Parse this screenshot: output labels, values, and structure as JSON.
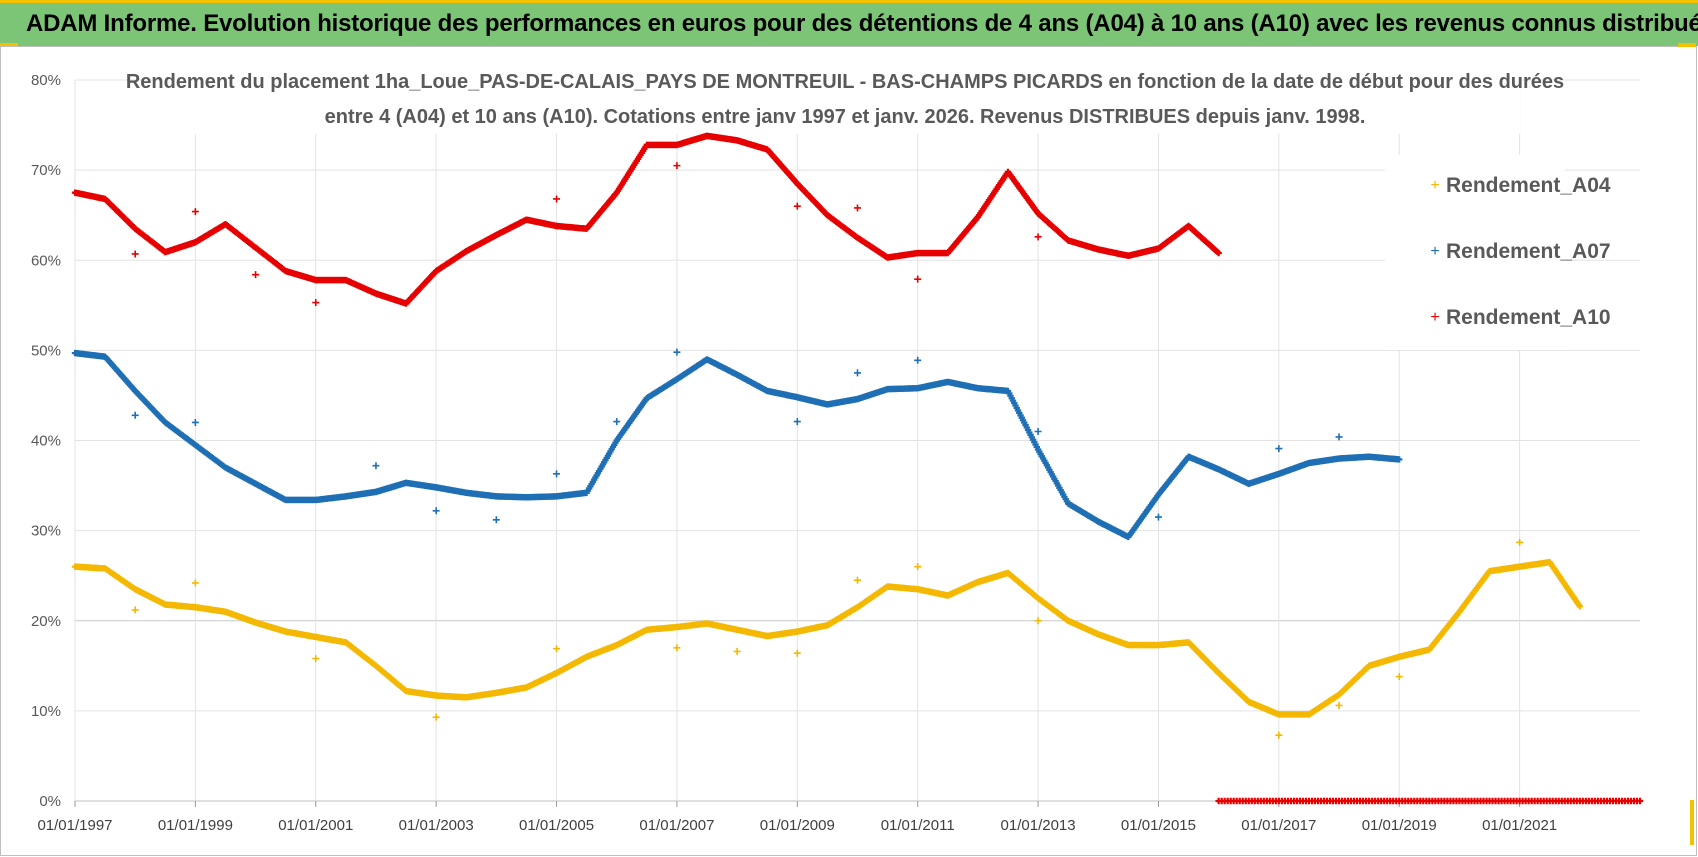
{
  "header": {
    "title": "ADAM Informe. Evolution historique des performances en euros pour des détentions de 4 ans (A04) à 10 ans (A10) avec les revenus connus distribués"
  },
  "chart_data": {
    "type": "scatter",
    "title_lines": [
      "Rendement du placement 1ha_Loue_PAS-DE-CALAIS_PAYS DE MONTREUIL - BAS-CHAMPS PICARDS en fonction de la date de début pour des durées",
      "entre 4 (A04) et 10 ans (A10). Cotations entre janv 1997 et janv. 2026. Revenus DISTRIBUES depuis janv. 1998."
    ],
    "xlabel": "",
    "ylabel": "",
    "xlim": [
      1997.0,
      2023.0
    ],
    "ylim": [
      0,
      80
    ],
    "x_tick_labels": [
      "01/01/1997",
      "01/01/1999",
      "01/01/2001",
      "01/01/2003",
      "01/01/2005",
      "01/01/2007",
      "01/01/2009",
      "01/01/2011",
      "01/01/2013",
      "01/01/2015",
      "01/01/2017",
      "01/01/2019",
      "01/01/2021"
    ],
    "x_tick_values": [
      1997,
      1999,
      2001,
      2003,
      2005,
      2007,
      2009,
      2011,
      2013,
      2015,
      2017,
      2019,
      2021
    ],
    "y_tick_labels": [
      "0%",
      "10%",
      "20%",
      "30%",
      "40%",
      "50%",
      "60%",
      "70%",
      "80%"
    ],
    "y_tick_values": [
      0,
      10,
      20,
      30,
      40,
      50,
      60,
      70,
      80
    ],
    "legend_position": "right",
    "series": [
      {
        "name": "Rendement_A04",
        "color": "#f5b800",
        "points": [
          [
            1997.0,
            26
          ],
          [
            1997.5,
            25.8
          ],
          [
            1998.0,
            23.5
          ],
          [
            1998.5,
            21.8
          ],
          [
            1999.0,
            21.5
          ],
          [
            1999.5,
            21
          ],
          [
            2000.0,
            19.8
          ],
          [
            2000.5,
            18.8
          ],
          [
            2001.0,
            18.2
          ],
          [
            2001.5,
            17.6
          ],
          [
            2002.0,
            15
          ],
          [
            2002.5,
            12.2
          ],
          [
            2003.0,
            11.7
          ],
          [
            2003.5,
            11.5
          ],
          [
            2004.0,
            12
          ],
          [
            2004.5,
            12.6
          ],
          [
            2005.0,
            14.2
          ],
          [
            2005.5,
            16
          ],
          [
            2006.0,
            17.3
          ],
          [
            2006.5,
            19
          ],
          [
            2007.0,
            19.3
          ],
          [
            2007.5,
            19.7
          ],
          [
            2008.0,
            19
          ],
          [
            2008.5,
            18.3
          ],
          [
            2009.0,
            18.8
          ],
          [
            2009.5,
            19.5
          ],
          [
            2010.0,
            21.5
          ],
          [
            2010.5,
            23.8
          ],
          [
            2011.0,
            23.5
          ],
          [
            2011.5,
            22.8
          ],
          [
            2012.0,
            24.3
          ],
          [
            2012.5,
            25.3
          ],
          [
            2013.0,
            22.5
          ],
          [
            2013.5,
            20
          ],
          [
            2014.0,
            18.5
          ],
          [
            2014.5,
            17.3
          ],
          [
            2015.0,
            17.3
          ],
          [
            2015.5,
            17.6
          ],
          [
            2016.0,
            14.2
          ],
          [
            2016.5,
            11
          ],
          [
            2017.0,
            9.6
          ],
          [
            2017.5,
            9.6
          ],
          [
            2018.0,
            11.8
          ],
          [
            2018.5,
            15
          ],
          [
            2019.0,
            16
          ],
          [
            2019.5,
            16.8
          ],
          [
            2020.0,
            21
          ],
          [
            2020.5,
            25.5
          ],
          [
            2021.0,
            26
          ],
          [
            2021.5,
            26.5
          ],
          [
            2022.0,
            21.6
          ]
        ],
        "outliers": [
          [
            1998.0,
            21.2
          ],
          [
            1999.0,
            24.2
          ],
          [
            2001.0,
            15.8
          ],
          [
            2003.0,
            9.3
          ],
          [
            2005.0,
            16.9
          ],
          [
            2007.0,
            17
          ],
          [
            2008.0,
            16.6
          ],
          [
            2009.0,
            16.4
          ],
          [
            2010.0,
            24.5
          ],
          [
            2011.0,
            26
          ],
          [
            2013.0,
            20
          ],
          [
            2017.0,
            7.3
          ],
          [
            2018.0,
            10.6
          ],
          [
            2019.0,
            13.8
          ],
          [
            2021.0,
            28.7
          ]
        ]
      },
      {
        "name": "Rendement_A07",
        "color": "#1f6fb5",
        "points": [
          [
            1997.0,
            49.7
          ],
          [
            1997.5,
            49.3
          ],
          [
            1998.0,
            45.5
          ],
          [
            1998.5,
            42
          ],
          [
            1999.0,
            39.5
          ],
          [
            1999.5,
            37
          ],
          [
            2000.0,
            35.2
          ],
          [
            2000.5,
            33.4
          ],
          [
            2001.0,
            33.4
          ],
          [
            2001.5,
            33.8
          ],
          [
            2002.0,
            34.3
          ],
          [
            2002.5,
            35.3
          ],
          [
            2003.0,
            34.8
          ],
          [
            2003.5,
            34.2
          ],
          [
            2004.0,
            33.8
          ],
          [
            2004.5,
            33.7
          ],
          [
            2005.0,
            33.8
          ],
          [
            2005.5,
            34.2
          ],
          [
            2006.0,
            40
          ],
          [
            2006.5,
            44.7
          ],
          [
            2007.0,
            46.8
          ],
          [
            2007.5,
            49
          ],
          [
            2008.0,
            47.3
          ],
          [
            2008.5,
            45.5
          ],
          [
            2009.0,
            44.8
          ],
          [
            2009.5,
            44
          ],
          [
            2010.0,
            44.6
          ],
          [
            2010.5,
            45.7
          ],
          [
            2011.0,
            45.8
          ],
          [
            2011.5,
            46.5
          ],
          [
            2012.0,
            45.8
          ],
          [
            2012.5,
            45.5
          ],
          [
            2013.0,
            39
          ],
          [
            2013.5,
            33
          ],
          [
            2014.0,
            31
          ],
          [
            2014.5,
            29.3
          ],
          [
            2015.0,
            34
          ],
          [
            2015.5,
            38.2
          ],
          [
            2016.0,
            36.8
          ],
          [
            2016.5,
            35.2
          ],
          [
            2017.0,
            36.3
          ],
          [
            2017.5,
            37.5
          ],
          [
            2018.0,
            38
          ],
          [
            2018.5,
            38.2
          ],
          [
            2019.0,
            37.9
          ]
        ],
        "outliers": [
          [
            1998.0,
            42.8
          ],
          [
            1999.0,
            42
          ],
          [
            2002.0,
            37.2
          ],
          [
            2003.0,
            32.2
          ],
          [
            2004.0,
            31.2
          ],
          [
            2005.0,
            36.3
          ],
          [
            2006.0,
            42.1
          ],
          [
            2007.0,
            49.8
          ],
          [
            2009.0,
            42.1
          ],
          [
            2010.0,
            47.5
          ],
          [
            2011.0,
            48.9
          ],
          [
            2013.0,
            41
          ],
          [
            2015.0,
            31.5
          ],
          [
            2017.0,
            39.1
          ],
          [
            2018.0,
            40.4
          ]
        ]
      },
      {
        "name": "Rendement_A10",
        "color": "#e60000",
        "points": [
          [
            1997.0,
            67.5
          ],
          [
            1997.5,
            66.8
          ],
          [
            1998.0,
            63.5
          ],
          [
            1998.5,
            60.9
          ],
          [
            1999.0,
            62
          ],
          [
            1999.5,
            64
          ],
          [
            2000.0,
            61.4
          ],
          [
            2000.5,
            58.8
          ],
          [
            2001.0,
            57.8
          ],
          [
            2001.5,
            57.8
          ],
          [
            2002.0,
            56.3
          ],
          [
            2002.5,
            55.2
          ],
          [
            2003.0,
            58.8
          ],
          [
            2003.5,
            61
          ],
          [
            2004.0,
            62.8
          ],
          [
            2004.5,
            64.5
          ],
          [
            2005.0,
            63.8
          ],
          [
            2005.5,
            63.5
          ],
          [
            2006.0,
            67.5
          ],
          [
            2006.5,
            72.8
          ],
          [
            2007.0,
            72.8
          ],
          [
            2007.5,
            73.8
          ],
          [
            2008.0,
            73.3
          ],
          [
            2008.5,
            72.3
          ],
          [
            2009.0,
            68.5
          ],
          [
            2009.5,
            65
          ],
          [
            2010.0,
            62.5
          ],
          [
            2010.5,
            60.3
          ],
          [
            2011.0,
            60.8
          ],
          [
            2011.5,
            60.8
          ],
          [
            2012.0,
            64.8
          ],
          [
            2012.5,
            69.8
          ],
          [
            2013.0,
            65.2
          ],
          [
            2013.5,
            62.2
          ],
          [
            2014.0,
            61.2
          ],
          [
            2014.5,
            60.5
          ],
          [
            2015.0,
            61.3
          ],
          [
            2015.5,
            63.8
          ],
          [
            2016.0,
            60.8
          ]
        ],
        "outliers": [
          [
            1998.0,
            60.7
          ],
          [
            1999.0,
            65.4
          ],
          [
            2000.0,
            58.4
          ],
          [
            2001.0,
            55.3
          ],
          [
            2005.0,
            66.8
          ],
          [
            2007.0,
            70.5
          ],
          [
            2009.0,
            66
          ],
          [
            2010.0,
            65.8
          ],
          [
            2011.0,
            57.9
          ],
          [
            2013.0,
            62.6
          ]
        ],
        "zero_segment": [
          2016.0,
          2023.0
        ]
      }
    ]
  }
}
